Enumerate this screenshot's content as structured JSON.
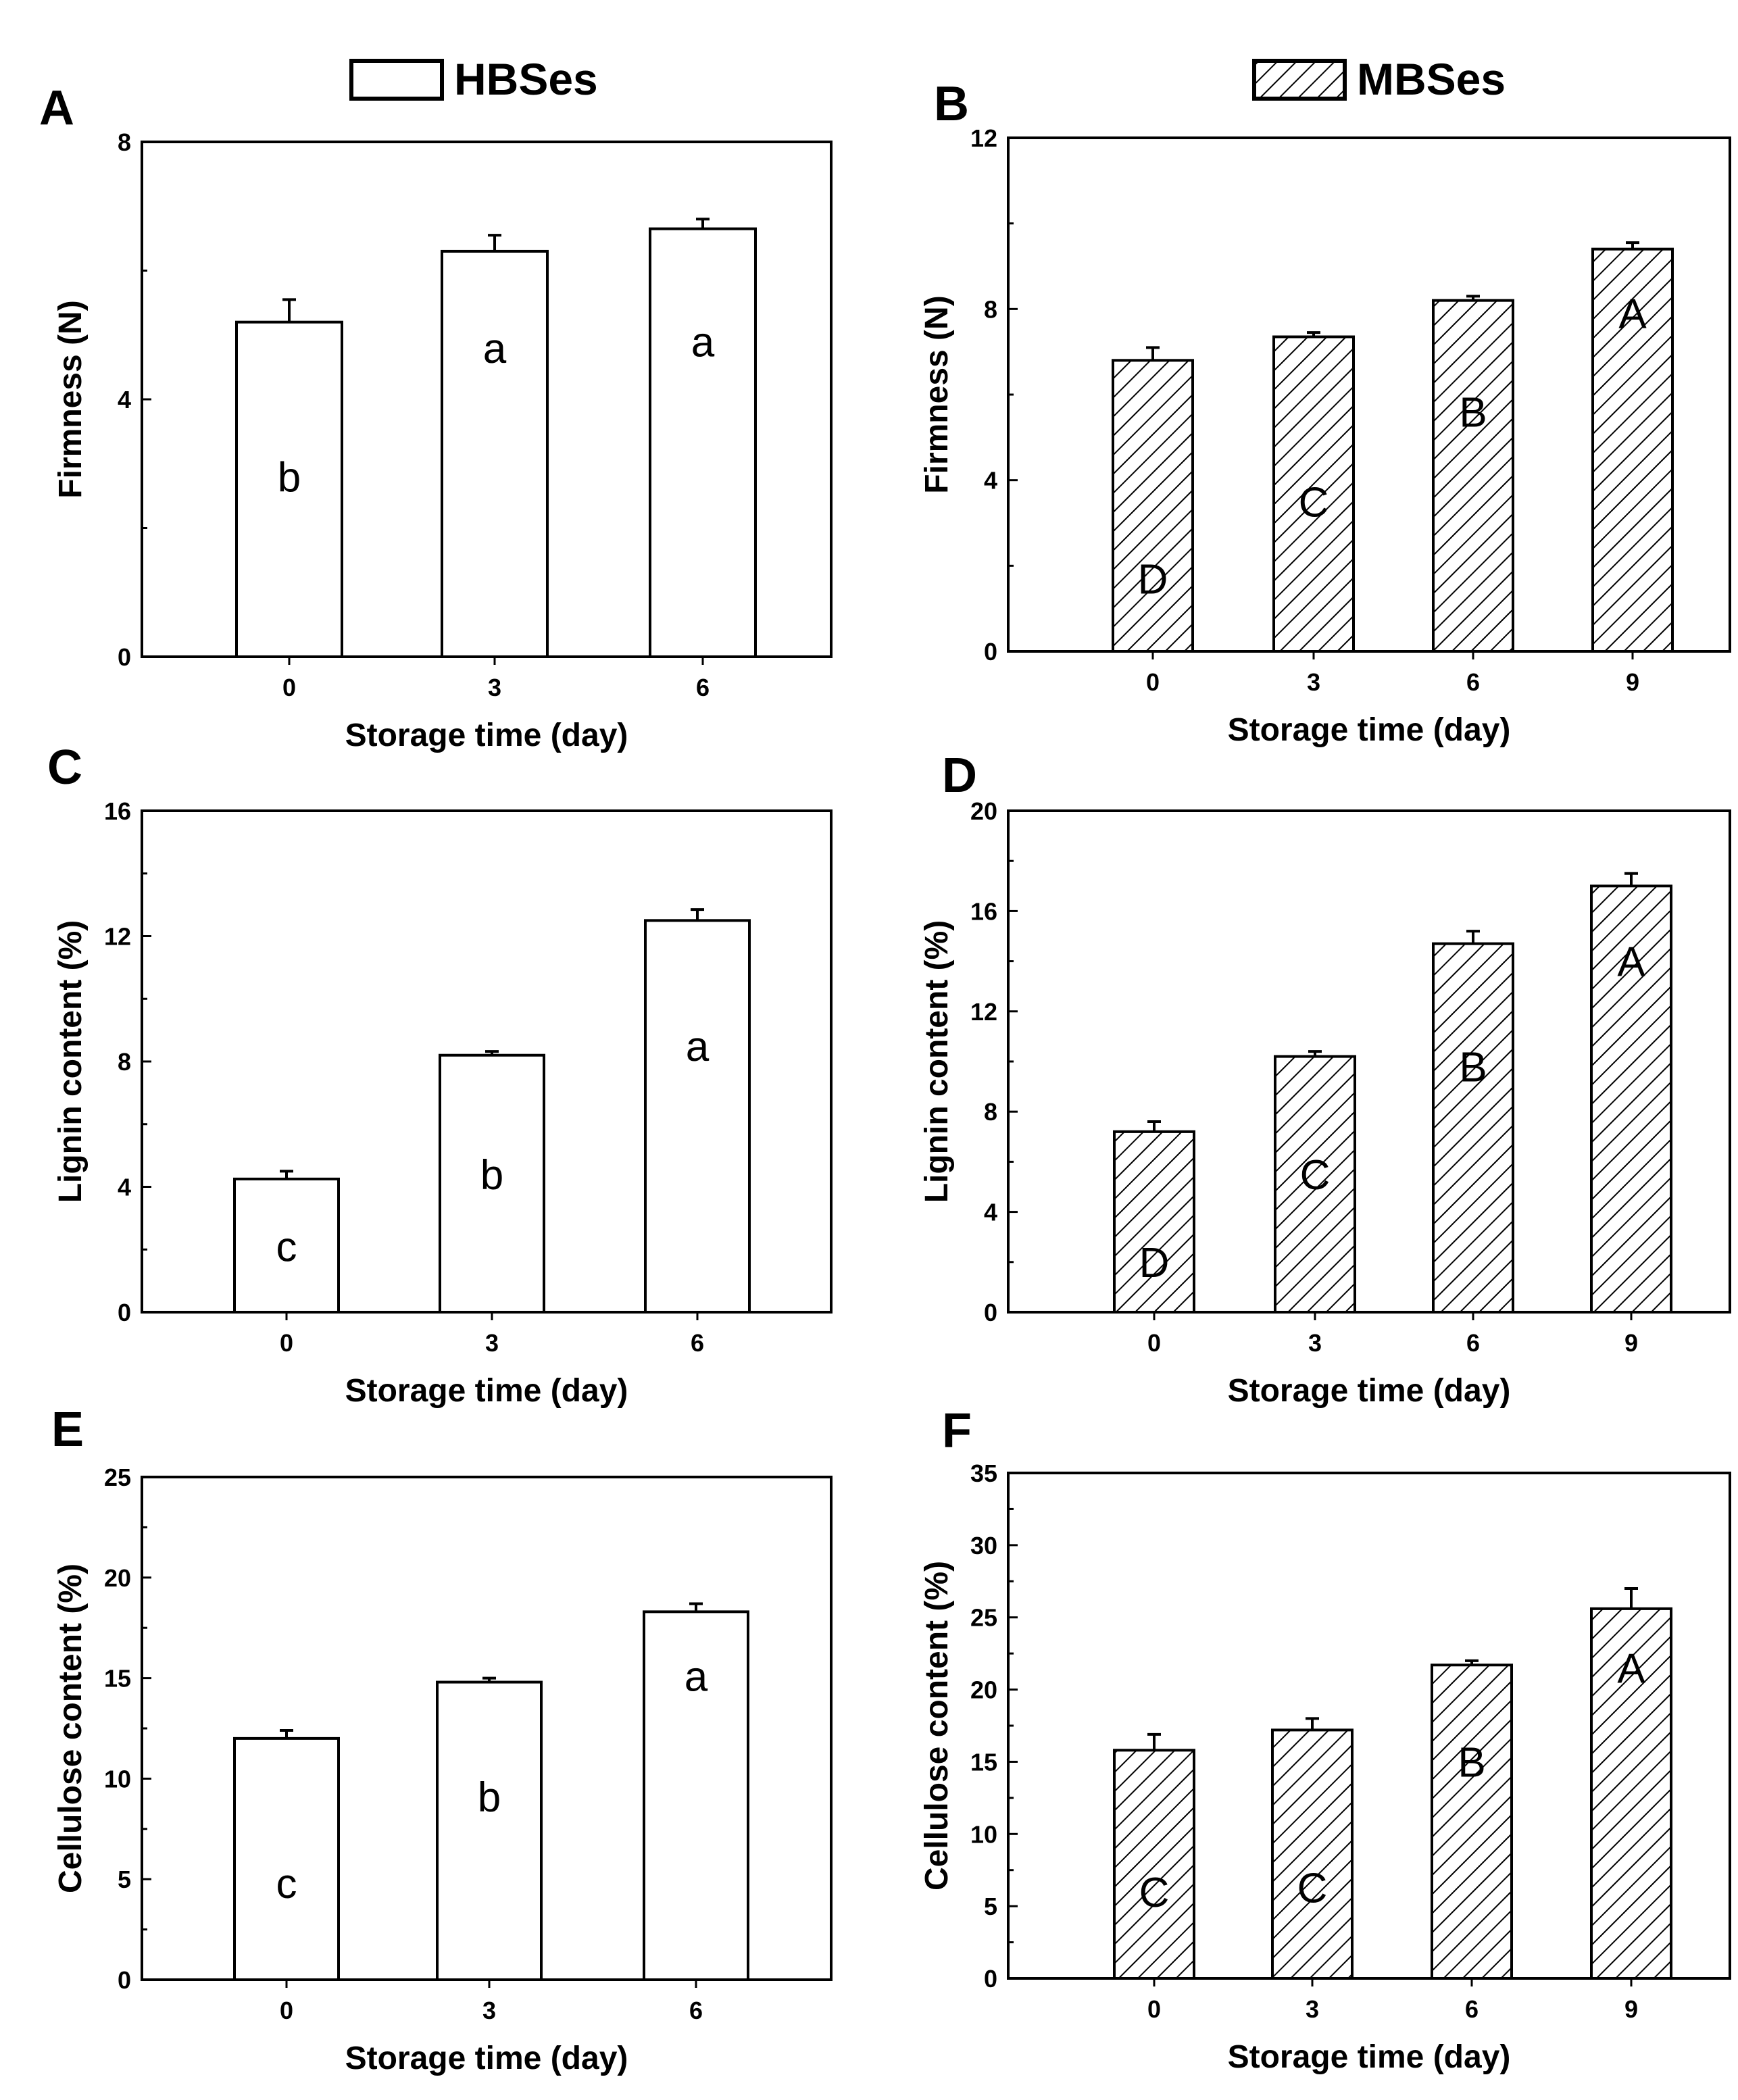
{
  "legend": {
    "left_label": "HBSes",
    "right_label": "MBSes"
  },
  "chart_data": [
    {
      "id": "A",
      "panel_label": "A",
      "type": "bar",
      "pattern": "open",
      "categories": [
        "0",
        "3",
        "6"
      ],
      "values": [
        5.2,
        6.3,
        6.65
      ],
      "errors": [
        0.35,
        0.25,
        0.15
      ],
      "letters": [
        "b",
        "a",
        "a"
      ],
      "letter_values": [
        2.8,
        4.8,
        4.9
      ],
      "ylim": [
        0,
        8
      ],
      "yticks": [
        0,
        4,
        8
      ],
      "minor_step": 2,
      "ylabel": "Firmness (N)",
      "xlabel": "Storage time (day)"
    },
    {
      "id": "B",
      "panel_label": "B",
      "type": "bar",
      "pattern": "hatched",
      "categories": [
        "0",
        "3",
        "6",
        "9"
      ],
      "values": [
        6.8,
        7.35,
        8.2,
        9.4
      ],
      "errors": [
        0.3,
        0.1,
        0.1,
        0.15
      ],
      "letters": [
        "D",
        "C",
        "B",
        "A"
      ],
      "letter_values": [
        1.7,
        3.5,
        5.6,
        7.9
      ],
      "ylim": [
        0,
        12
      ],
      "yticks": [
        0,
        4,
        8,
        12
      ],
      "minor_step": 2,
      "ylabel": "Firmness (N)",
      "xlabel": "Storage time (day)"
    },
    {
      "id": "C",
      "panel_label": "C",
      "type": "bar",
      "pattern": "open",
      "categories": [
        "0",
        "3",
        "6"
      ],
      "values": [
        4.25,
        8.2,
        12.5
      ],
      "errors": [
        0.25,
        0.12,
        0.35
      ],
      "letters": [
        "c",
        "b",
        "a"
      ],
      "letter_values": [
        2.1,
        4.4,
        8.5
      ],
      "ylim": [
        0,
        16
      ],
      "yticks": [
        0,
        4,
        8,
        12,
        16
      ],
      "minor_step": 2,
      "ylabel": "Lignin content (%)",
      "xlabel": "Storage time (day)"
    },
    {
      "id": "D",
      "panel_label": "D",
      "type": "bar",
      "pattern": "hatched",
      "categories": [
        "0",
        "3",
        "6",
        "9"
      ],
      "values": [
        7.2,
        10.2,
        14.7,
        17.0
      ],
      "errors": [
        0.4,
        0.2,
        0.5,
        0.5
      ],
      "letters": [
        "D",
        "C",
        "B",
        "A"
      ],
      "letter_values": [
        2.0,
        5.5,
        9.8,
        14.0
      ],
      "ylim": [
        0,
        20
      ],
      "yticks": [
        0,
        4,
        8,
        12,
        16,
        20
      ],
      "minor_step": 2,
      "ylabel": "Lignin content (%)",
      "xlabel": "Storage time (day)"
    },
    {
      "id": "E",
      "panel_label": "E",
      "type": "bar",
      "pattern": "open",
      "categories": [
        "0",
        "3",
        "6"
      ],
      "values": [
        12.0,
        14.8,
        18.3
      ],
      "errors": [
        0.4,
        0.2,
        0.4
      ],
      "letters": [
        "c",
        "b",
        "a"
      ],
      "letter_values": [
        4.8,
        9.1,
        15.1
      ],
      "ylim": [
        0,
        25
      ],
      "yticks": [
        0,
        5,
        10,
        15,
        20,
        25
      ],
      "minor_step": 2.5,
      "ylabel": "Cellulose content (%)",
      "xlabel": "Storage time (day)"
    },
    {
      "id": "F",
      "panel_label": "F",
      "type": "bar",
      "pattern": "hatched",
      "categories": [
        "0",
        "3",
        "6",
        "9"
      ],
      "values": [
        15.8,
        17.2,
        21.7,
        25.6
      ],
      "errors": [
        1.1,
        0.8,
        0.3,
        1.4
      ],
      "letters": [
        "C",
        "C",
        "B",
        "A"
      ],
      "letter_values": [
        6.0,
        6.3,
        15.0,
        21.5
      ],
      "ylim": [
        0,
        35
      ],
      "yticks": [
        0,
        5,
        10,
        15,
        20,
        25,
        30,
        35
      ],
      "minor_step": 2.5,
      "ylabel": "Cellulose content (%)",
      "xlabel": "Storage time (day)"
    }
  ]
}
